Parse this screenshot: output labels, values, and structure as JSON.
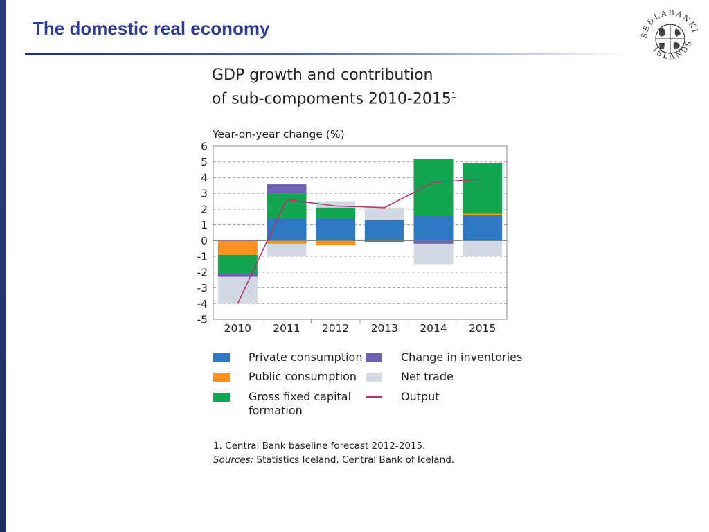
{
  "slide": {
    "title": "The domestic real economy",
    "logo": {
      "icon": "central-bank-seal-icon",
      "text": "SEÐLABANKI ÍSLANDS"
    }
  },
  "chart_data": {
    "type": "bar",
    "stacked": true,
    "title_line1": "GDP growth and contribution",
    "title_line2": "of sub-compoments 2010-2015",
    "title_sup": "1",
    "ylabel": "Year-on-year change (%)",
    "ylim": [
      -5,
      6
    ],
    "yticks": [
      6,
      5,
      4,
      3,
      2,
      1,
      0,
      -1,
      -2,
      -3,
      -4,
      -5
    ],
    "grid": "dashed-horizontal",
    "categories": [
      "2010",
      "2011",
      "2012",
      "2013",
      "2014",
      "2015"
    ],
    "series": [
      {
        "name": "Private consumption",
        "color": "#2f78c4",
        "values": [
          0.0,
          1.4,
          1.4,
          1.3,
          1.6,
          1.6
        ]
      },
      {
        "name": "Public consumption",
        "color": "#f7941d",
        "values": [
          -0.9,
          -0.2,
          -0.3,
          0.0,
          0.0,
          0.1
        ]
      },
      {
        "name": "Gross fixed capital formation",
        "color": "#12a650",
        "values": [
          -1.2,
          1.6,
          0.7,
          -0.1,
          3.6,
          3.2
        ]
      },
      {
        "name": "Change in inventories",
        "color": "#6c63b5",
        "values": [
          -0.2,
          0.6,
          0.0,
          0.0,
          -0.2,
          0.0
        ]
      },
      {
        "name": "Net trade",
        "color": "#d3d9e3",
        "values": [
          -1.7,
          -0.8,
          0.4,
          0.8,
          -1.3,
          -1.0
        ]
      }
    ],
    "line_series": {
      "name": "Output",
      "color": "#b3366e",
      "values": [
        -4.0,
        2.6,
        2.2,
        2.1,
        3.7,
        3.9
      ]
    },
    "legend": [
      {
        "label": "Private consumption",
        "color": "#2f78c4",
        "kind": "box"
      },
      {
        "label": "Change in inventories",
        "color": "#6c63b5",
        "kind": "box"
      },
      {
        "label": "Public consumption",
        "color": "#f7941d",
        "kind": "box"
      },
      {
        "label": "Net trade",
        "color": "#d3d9e3",
        "kind": "box"
      },
      {
        "label": "Gross fixed capital formation",
        "color": "#12a650",
        "kind": "box"
      },
      {
        "label": "Output",
        "color": "#b3366e",
        "kind": "line"
      }
    ],
    "footnote": "1. Central Bank baseline forecast 2012-2015.",
    "sources_label": "Sources:",
    "sources_text": " Statistics Iceland, Central Bank of Iceland."
  }
}
